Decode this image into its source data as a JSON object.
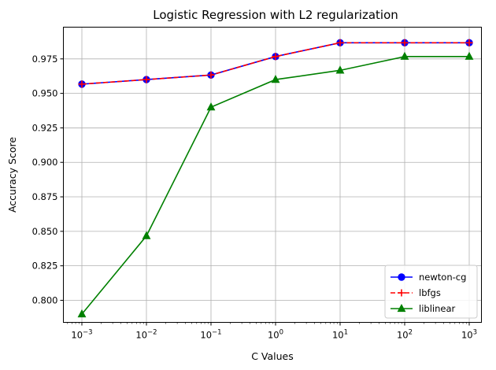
{
  "chart_data": {
    "type": "line",
    "title": "Logistic Regression with L2 regularization",
    "xlabel": "C Values",
    "ylabel": "Accuracy Score",
    "xscale": "log",
    "x": [
      0.001,
      0.01,
      0.1,
      1,
      10,
      100,
      1000
    ],
    "x_ticks": [
      {
        "value": 0.001,
        "base": "10",
        "exp": "−3"
      },
      {
        "value": 0.01,
        "base": "10",
        "exp": "−2"
      },
      {
        "value": 0.1,
        "base": "10",
        "exp": "−1"
      },
      {
        "value": 1,
        "base": "10",
        "exp": "0"
      },
      {
        "value": 10,
        "base": "10",
        "exp": "1"
      },
      {
        "value": 100,
        "base": "10",
        "exp": "2"
      },
      {
        "value": 1000,
        "base": "10",
        "exp": "3"
      }
    ],
    "y_ticks": [
      "0.800",
      "0.825",
      "0.850",
      "0.875",
      "0.900",
      "0.925",
      "0.950",
      "0.975"
    ],
    "ylim": [
      0.784,
      0.998
    ],
    "grid": true,
    "legend_position": "bottom-right",
    "series": [
      {
        "name": "newton-cg",
        "color": "#0000ff",
        "marker": "circle",
        "linestyle": "solid",
        "values": [
          0.9567,
          0.96,
          0.9633,
          0.9767,
          0.9867,
          0.9867,
          0.9867
        ]
      },
      {
        "name": "lbfgs",
        "color": "#ff0000",
        "marker": "plus",
        "linestyle": "dashed",
        "values": [
          0.9567,
          0.96,
          0.9633,
          0.9767,
          0.9867,
          0.9867,
          0.9867
        ]
      },
      {
        "name": "liblinear",
        "color": "#008000",
        "marker": "triangle",
        "linestyle": "solid",
        "values": [
          0.79,
          0.8467,
          0.94,
          0.96,
          0.9667,
          0.9767,
          0.9767
        ]
      }
    ]
  }
}
